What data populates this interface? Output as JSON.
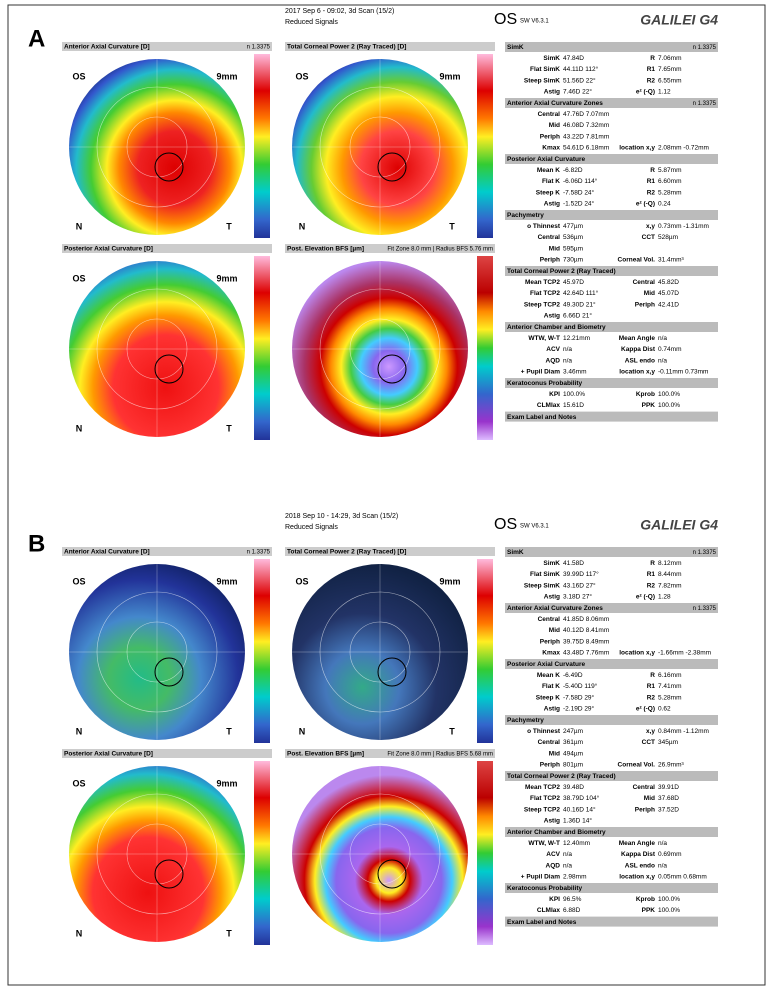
{
  "panels": [
    {
      "label": "A",
      "date": "2017 Sep 6 - 09:02, 3d Scan (15/2)",
      "signals": "Reduced Signals",
      "eye": "OS",
      "version": "SW V6.3.1",
      "logo": "GALILEI G4",
      "maps": [
        {
          "title": "Anterior Axial Curvature [D]",
          "note": "n 1.3375",
          "labels": [
            "OS",
            "9mm",
            "N",
            "T"
          ]
        },
        {
          "title": "Total Corneal Power 2 (Ray Traced) [D]",
          "labels": [
            "OS",
            "9mm",
            "N",
            "T"
          ]
        },
        {
          "title": "Posterior Axial Curvature [D]",
          "labels": [
            "OS",
            "9mm",
            "N",
            "T"
          ]
        },
        {
          "title": "Post. Elevation BFS [µm]",
          "note": "Fit Zone 8.0 mm | Radius BFS 5.76 mm"
        }
      ],
      "table": [
        {
          "title": "SimK",
          "n": "n 1.3375",
          "rows": [
            [
              "SimK",
              "47.84D",
              "R",
              "7.06mm"
            ],
            [
              "Flat SimK",
              "44.11D 112°",
              "R1",
              "7.65mm"
            ],
            [
              "Steep SimK",
              "51.56D 22°",
              "R2",
              "6.55mm"
            ],
            [
              "Astig",
              "7.46D 22°",
              "e² (-Q)",
              "1.12"
            ]
          ]
        },
        {
          "title": "Anterior Axial Curvature Zones",
          "n": "n 1.3375",
          "rows": [
            [
              "Central",
              "47.76D 7.07mm"
            ],
            [
              "Mid",
              "46.08D 7.32mm"
            ],
            [
              "Periph",
              "43.22D 7.81mm"
            ],
            [
              "Kmax",
              "54.61D 6.18mm",
              "location x,y",
              "2.08mm -0.72mm"
            ]
          ]
        },
        {
          "title": "Posterior Axial Curvature",
          "rows": [
            [
              "Mean K",
              "-6.82D",
              "R",
              "5.87mm"
            ],
            [
              "Flat K",
              "-6.06D 114°",
              "R1",
              "6.60mm"
            ],
            [
              "Steep K",
              "-7.58D 24°",
              "R2",
              "5.28mm"
            ],
            [
              "Astig",
              "-1.52D 24°",
              "e² (-Q)",
              "0.24"
            ]
          ]
        },
        {
          "title": "Pachymetry",
          "rows": [
            [
              "o Thinnest",
              "477µm",
              "x,y",
              "0.73mm -1.31mm"
            ],
            [
              "Central",
              "536µm",
              "CCT",
              "528µm"
            ],
            [
              "Mid",
              "595µm"
            ],
            [
              "Periph",
              "730µm",
              "Corneal Vol.",
              "31.4mm³"
            ]
          ]
        },
        {
          "title": "Total Corneal Power 2 (Ray Traced)",
          "rows": [
            [
              "Mean TCP2",
              "45.97D",
              "Central",
              "45.82D"
            ],
            [
              "Flat TCP2",
              "42.64D 111°",
              "Mid",
              "45.07D"
            ],
            [
              "Steep TCP2",
              "49.30D 21°",
              "Periph",
              "42.41D"
            ],
            [
              "Astig",
              "6.66D 21°"
            ]
          ]
        },
        {
          "title": "Anterior Chamber and Biometry",
          "rows": [
            [
              "WTW, W-T",
              "12.21mm",
              "Mean Angle",
              "n/a"
            ],
            [
              "ACV",
              "n/a",
              "Kappa Dist",
              "0.74mm"
            ],
            [
              "AQD",
              "n/a",
              "ASL endo",
              "n/a"
            ],
            [
              "+ Pupil Diam",
              "3.46mm",
              "location x,y",
              "-0.11mm 0.73mm"
            ]
          ]
        },
        {
          "title": "Keratoconus Probability",
          "rows": [
            [
              "KPI",
              "100.0%",
              "Kprob",
              "100.0%"
            ],
            [
              "CLMIax",
              "15.61D",
              "PPK",
              "100.0%"
            ]
          ]
        },
        {
          "title": "Exam Label and Notes",
          "rows": []
        }
      ]
    },
    {
      "label": "B",
      "date": "2018 Sep 10 - 14:29, 3d Scan (15/2)",
      "signals": "Reduced Signals",
      "eye": "OS",
      "version": "SW V6.3.1",
      "logo": "GALILEI G4",
      "maps": [
        {
          "title": "Anterior Axial Curvature [D]",
          "note": "n 1.3375",
          "labels": [
            "OS",
            "9mm",
            "N",
            "T"
          ]
        },
        {
          "title": "Total Corneal Power 2 (Ray Traced) [D]",
          "labels": [
            "OS",
            "9mm",
            "N",
            "T"
          ]
        },
        {
          "title": "Posterior Axial Curvature [D]",
          "labels": [
            "OS",
            "9mm",
            "N",
            "T"
          ]
        },
        {
          "title": "Post. Elevation BFS [µm]",
          "note": "Fit Zone 8.0 mm | Radius BFS 5.68 mm"
        }
      ],
      "table": [
        {
          "title": "SimK",
          "n": "n 1.3375",
          "rows": [
            [
              "SimK",
              "41.58D",
              "R",
              "8.12mm"
            ],
            [
              "Flat SimK",
              "39.99D 117°",
              "R1",
              "8.44mm"
            ],
            [
              "Steep SimK",
              "43.16D 27°",
              "R2",
              "7.82mm"
            ],
            [
              "Astig",
              "3.18D 27°",
              "e² (-Q)",
              "1.28"
            ]
          ]
        },
        {
          "title": "Anterior Axial Curvature Zones",
          "n": "n 1.3375",
          "rows": [
            [
              "Central",
              "41.85D 8.06mm"
            ],
            [
              "Mid",
              "40.12D 8.41mm"
            ],
            [
              "Periph",
              "39.75D 8.49mm"
            ],
            [
              "Kmax",
              "43.48D 7.76mm",
              "location x,y",
              "-1.66mm -2.38mm"
            ]
          ]
        },
        {
          "title": "Posterior Axial Curvature",
          "rows": [
            [
              "Mean K",
              "-6.49D",
              "R",
              "6.16mm"
            ],
            [
              "Flat K",
              "-5.40D 119°",
              "R1",
              "7.41mm"
            ],
            [
              "Steep K",
              "-7.58D 29°",
              "R2",
              "5.28mm"
            ],
            [
              "Astig",
              "-2.19D 29°",
              "e² (-Q)",
              "0.62"
            ]
          ]
        },
        {
          "title": "Pachymetry",
          "rows": [
            [
              "o Thinnest",
              "247µm",
              "x,y",
              "0.84mm -1.12mm"
            ],
            [
              "Central",
              "361µm",
              "CCT",
              "345µm"
            ],
            [
              "Mid",
              "494µm"
            ],
            [
              "Periph",
              "801µm",
              "Corneal Vol.",
              "26.9mm³"
            ]
          ]
        },
        {
          "title": "Total Corneal Power 2 (Ray Traced)",
          "rows": [
            [
              "Mean TCP2",
              "39.48D",
              "Central",
              "39.91D"
            ],
            [
              "Flat TCP2",
              "38.79D 104°",
              "Mid",
              "37.68D"
            ],
            [
              "Steep TCP2",
              "40.16D 14°",
              "Periph",
              "37.52D"
            ],
            [
              "Astig",
              "1.36D 14°"
            ]
          ]
        },
        {
          "title": "Anterior Chamber and Biometry",
          "rows": [
            [
              "WTW, W-T",
              "12.40mm",
              "Mean Angle",
              "n/a"
            ],
            [
              "ACV",
              "n/a",
              "Kappa Dist",
              "0.69mm"
            ],
            [
              "AQD",
              "n/a",
              "ASL endo",
              "n/a"
            ],
            [
              "+ Pupil Diam",
              "2.98mm",
              "location x,y",
              "0.05mm 0.68mm"
            ]
          ]
        },
        {
          "title": "Keratoconus Probability",
          "rows": [
            [
              "KPI",
              "96.5%",
              "Kprob",
              "100.0%"
            ],
            [
              "CLMIax",
              "6.88D",
              "PPK",
              "100.0%"
            ]
          ]
        },
        {
          "title": "Exam Label and Notes",
          "rows": []
        }
      ]
    }
  ]
}
